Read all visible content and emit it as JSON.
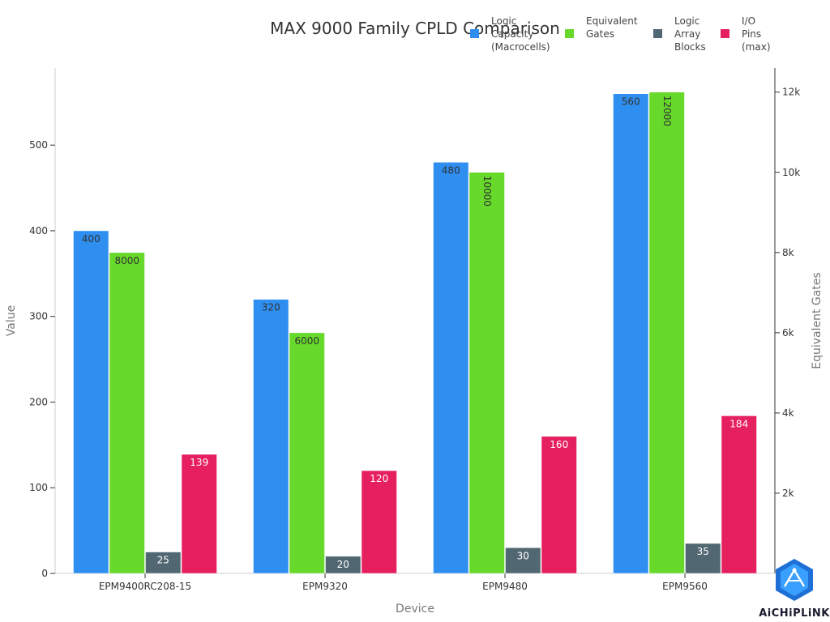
{
  "chart_data": {
    "type": "bar",
    "title": "MAX 9000 Family CPLD Comparison",
    "xlabel": "Device",
    "ylabel": "Value",
    "y2label": "Equivalent Gates",
    "categories": [
      "EPM9400RC208-15",
      "EPM9320",
      "EPM9480",
      "EPM9560"
    ],
    "ylim": [
      0,
      590
    ],
    "y2lim": [
      0,
      12600
    ],
    "yticks": [
      0,
      100,
      200,
      300,
      400,
      500
    ],
    "y2ticks": [
      2000,
      4000,
      6000,
      8000,
      10000,
      12000
    ],
    "y2tick_labels": [
      "2k",
      "4k",
      "6k",
      "8k",
      "10k",
      "12k"
    ],
    "series": [
      {
        "name": "Logic Capacity (Macrocells)",
        "legend_lines": [
          "Logic",
          "Capacity",
          "(Macrocells)"
        ],
        "axis": "left",
        "color": "#2e8ff0",
        "label_color": "#333333",
        "values": [
          400,
          320,
          480,
          560
        ]
      },
      {
        "name": "Equivalent Gates",
        "legend_lines": [
          "Equivalent",
          "Gates"
        ],
        "axis": "right",
        "color": "#66d92a",
        "label_color": "#333333",
        "values": [
          8000,
          6000,
          10000,
          12000
        ]
      },
      {
        "name": "Logic Array Blocks",
        "legend_lines": [
          "Logic",
          "Array",
          "Blocks"
        ],
        "axis": "left",
        "color": "#516872",
        "label_color": "#ffffff",
        "values": [
          25,
          20,
          30,
          35
        ]
      },
      {
        "name": "I/O Pins (max)",
        "legend_lines": [
          "I/O",
          "Pins",
          "(max)"
        ],
        "axis": "left",
        "color": "#e61f5f",
        "label_color": "#ffffff",
        "values": [
          139,
          120,
          160,
          184
        ]
      }
    ]
  },
  "logo": {
    "text": "AiCHiPLiNK",
    "icon": "chip-link-logo-icon"
  }
}
